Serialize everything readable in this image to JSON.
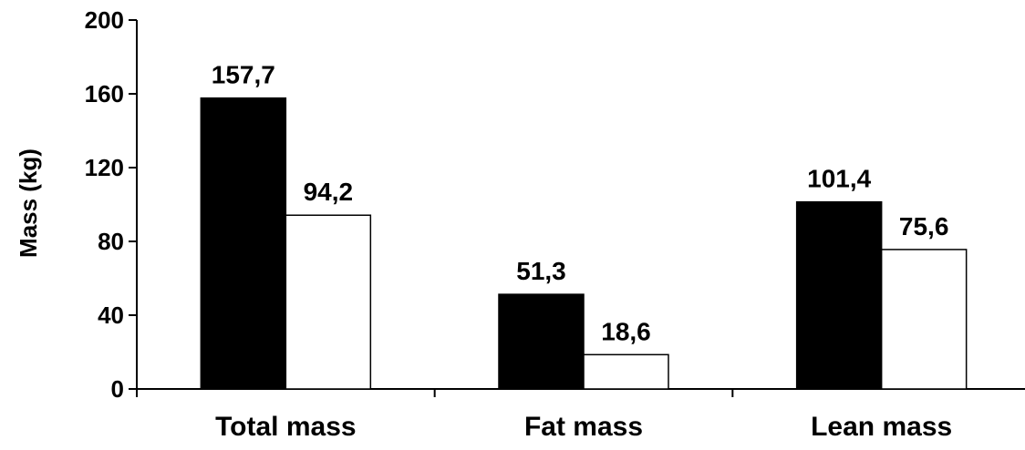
{
  "chart_data": {
    "type": "bar",
    "categories": [
      "Total mass",
      "Fat mass",
      "Lean mass"
    ],
    "series": [
      {
        "color": "#000000",
        "values": [
          157.7,
          51.3,
          101.4
        ],
        "labels": [
          "157,7",
          "51,3",
          "101,4"
        ]
      },
      {
        "color": "#ffffff",
        "values": [
          94.2,
          18.6,
          75.6
        ],
        "labels": [
          "94,2",
          "18,6",
          "75,6"
        ]
      }
    ],
    "ylabel": "Mass (kg)",
    "ylim": [
      0,
      200
    ],
    "yticks": [
      0,
      40,
      80,
      120,
      160,
      200
    ],
    "ytick_labels": [
      "0",
      "40",
      "80",
      "120",
      "160",
      "200"
    ],
    "grid": false,
    "legend": "none"
  }
}
